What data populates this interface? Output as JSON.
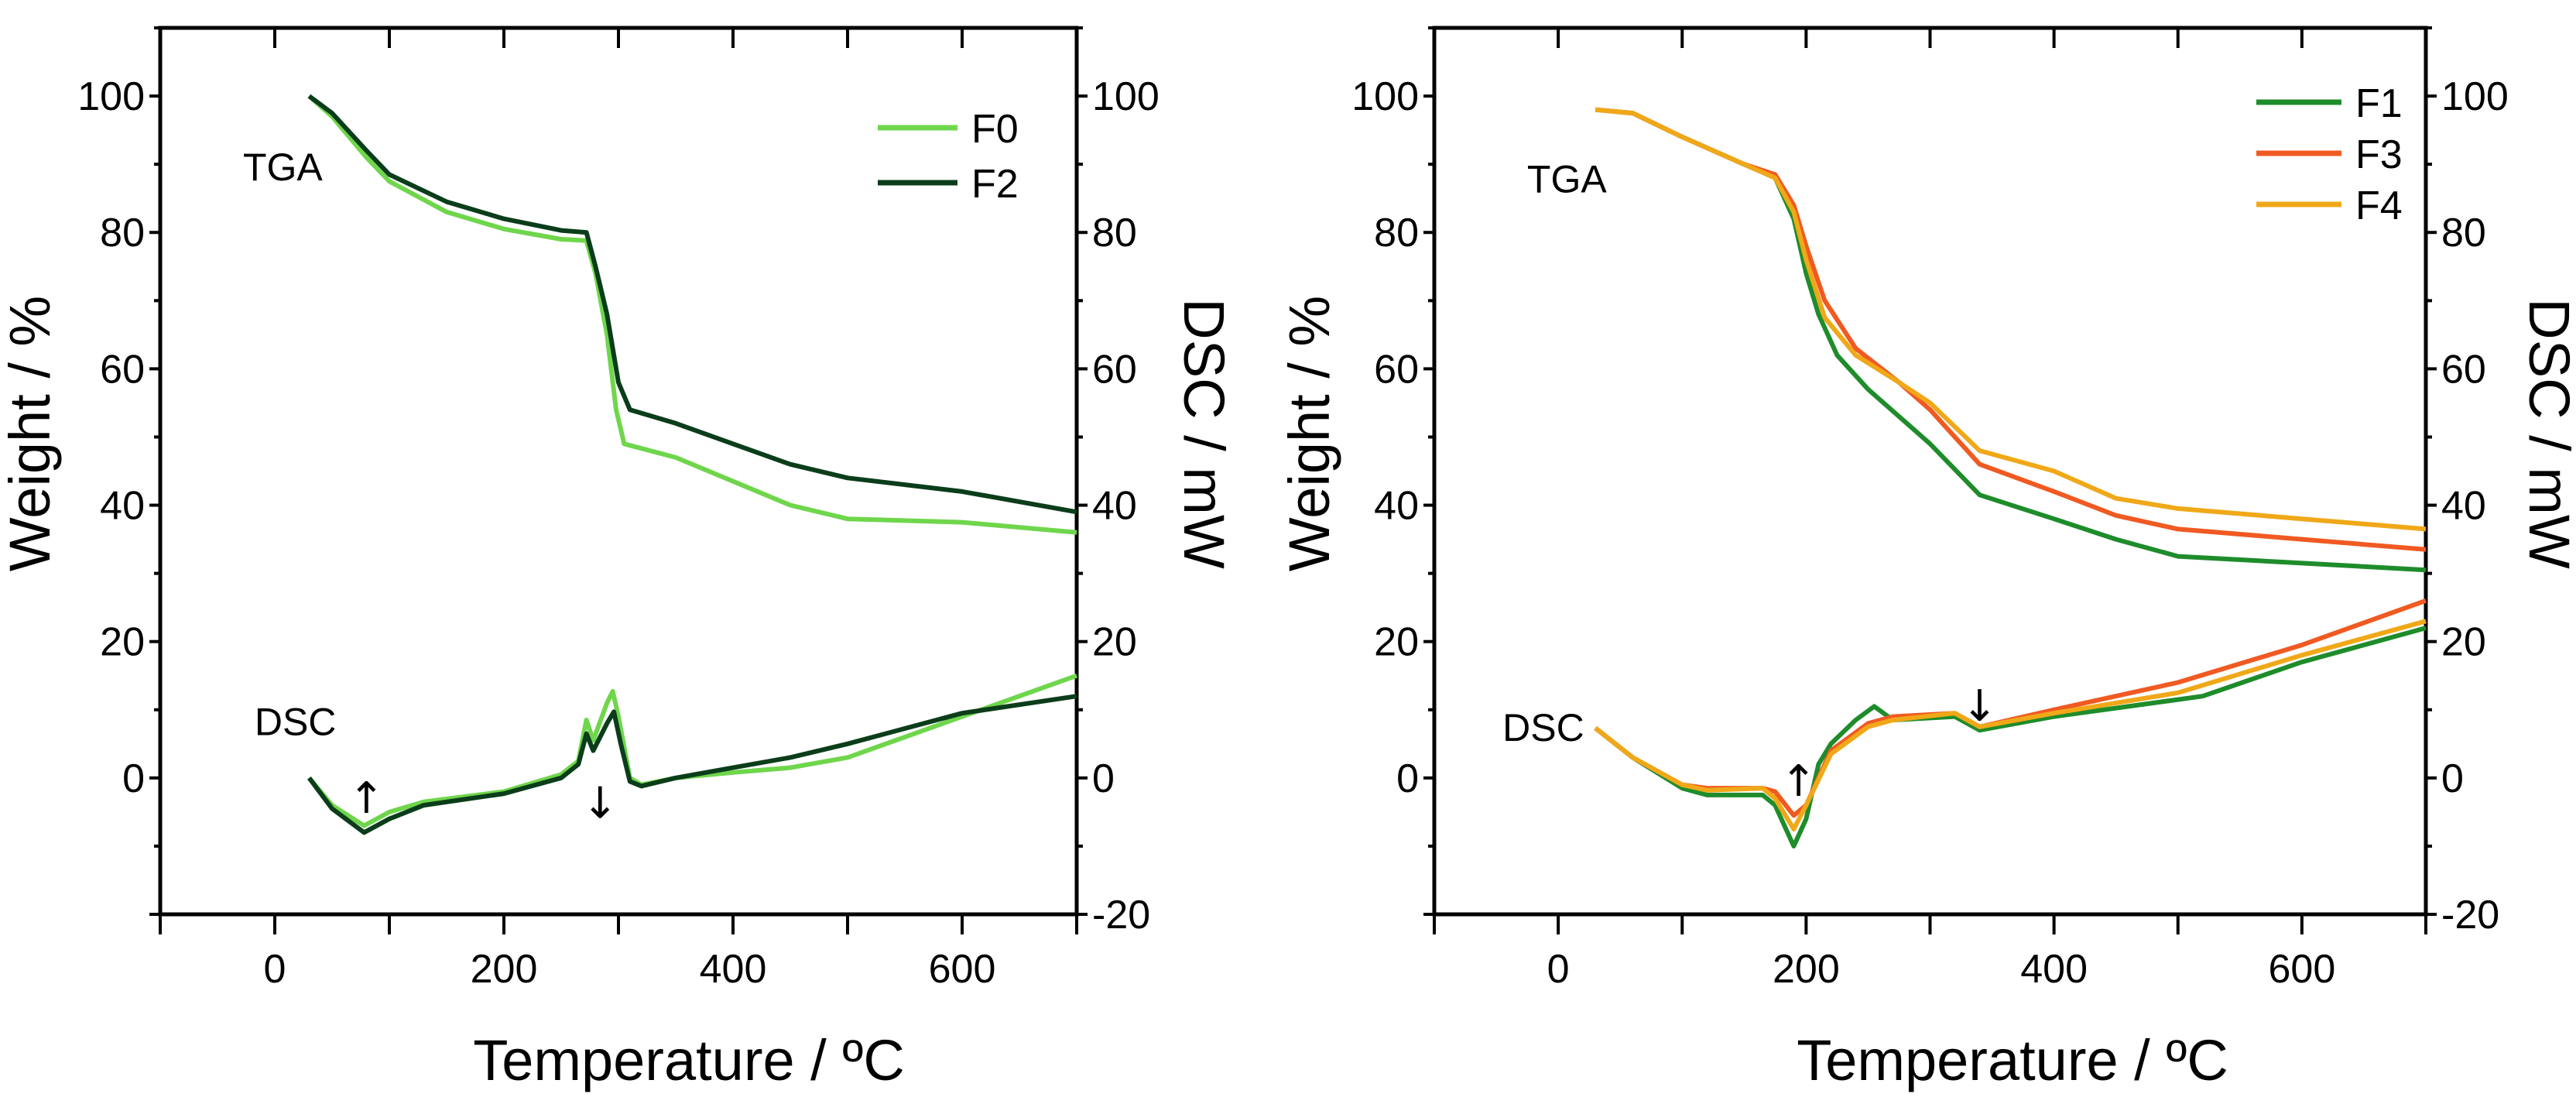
{
  "chart_data": [
    {
      "type": "line",
      "title": "",
      "xlabel": "Temperature / ºC",
      "ylabel": "Weight / %",
      "ylabel_right": "DSC / mW",
      "xlim": [
        -100,
        700
      ],
      "ylim": [
        -20,
        110
      ],
      "ylim_right": [
        -20,
        110
      ],
      "xticks": [
        0,
        200,
        400,
        600
      ],
      "yticks": [
        0,
        20,
        40,
        60,
        80,
        100
      ],
      "yticks_right": [
        -20,
        0,
        20,
        40,
        60,
        80,
        100
      ],
      "grid": false,
      "legend_position": "top-right",
      "legend": [
        "F0",
        "F2"
      ],
      "annotations": [
        {
          "text": "TGA",
          "x": 7,
          "y": 89.7,
          "kind": "label"
        },
        {
          "text": "DSC",
          "x": 18,
          "y": 8.3,
          "kind": "label"
        },
        {
          "text": "↑",
          "x": 80,
          "y": -3.1,
          "kind": "arrow"
        },
        {
          "text": "↓",
          "x": 284,
          "y": -3.8,
          "kind": "arrow"
        }
      ],
      "series": [
        {
          "name": "F0",
          "curve": "TGA",
          "color": "#6fd64c",
          "points": [
            [
              30,
              100
            ],
            [
              50,
              97
            ],
            [
              80,
              91
            ],
            [
              100,
              87.5
            ],
            [
              150,
              83
            ],
            [
              200,
              80.5
            ],
            [
              250,
              79
            ],
            [
              272,
              78.8
            ],
            [
              280,
              74
            ],
            [
              290,
              65
            ],
            [
              298,
              54
            ],
            [
              305,
              49
            ],
            [
              350,
              47
            ],
            [
              400,
              43.5
            ],
            [
              450,
              40
            ],
            [
              500,
              38
            ],
            [
              600,
              37.5
            ],
            [
              700,
              36
            ]
          ]
        },
        {
          "name": "F2",
          "curve": "TGA",
          "color": "#0b3d1a",
          "points": [
            [
              30,
              100
            ],
            [
              50,
              97.5
            ],
            [
              80,
              92
            ],
            [
              100,
              88.5
            ],
            [
              150,
              84.5
            ],
            [
              200,
              82
            ],
            [
              250,
              80.3
            ],
            [
              272,
              80
            ],
            [
              280,
              75
            ],
            [
              290,
              68
            ],
            [
              300,
              58
            ],
            [
              310,
              54
            ],
            [
              350,
              52
            ],
            [
              400,
              49
            ],
            [
              450,
              46
            ],
            [
              500,
              44
            ],
            [
              600,
              42
            ],
            [
              700,
              39
            ]
          ]
        },
        {
          "name": "F0",
          "curve": "DSC",
          "color": "#6fd64c",
          "points": [
            [
              30,
              0
            ],
            [
              50,
              -4
            ],
            [
              78,
              -7
            ],
            [
              100,
              -5
            ],
            [
              130,
              -3.5
            ],
            [
              200,
              -2
            ],
            [
              250,
              0.5
            ],
            [
              265,
              2.5
            ],
            [
              272,
              8.5
            ],
            [
              278,
              5.5
            ],
            [
              290,
              11
            ],
            [
              295,
              12.7
            ],
            [
              300,
              9
            ],
            [
              310,
              0
            ],
            [
              320,
              -1
            ],
            [
              350,
              0
            ],
            [
              400,
              0.8
            ],
            [
              450,
              1.5
            ],
            [
              500,
              3
            ],
            [
              600,
              9
            ],
            [
              700,
              15
            ]
          ]
        },
        {
          "name": "F2",
          "curve": "DSC",
          "color": "#0b3d1a",
          "points": [
            [
              30,
              0
            ],
            [
              50,
              -4.5
            ],
            [
              78,
              -8
            ],
            [
              100,
              -6
            ],
            [
              130,
              -4
            ],
            [
              200,
              -2.3
            ],
            [
              250,
              0
            ],
            [
              265,
              2
            ],
            [
              272,
              6.5
            ],
            [
              278,
              4
            ],
            [
              290,
              8
            ],
            [
              296,
              9.7
            ],
            [
              302,
              5
            ],
            [
              310,
              -0.5
            ],
            [
              320,
              -1.2
            ],
            [
              350,
              0
            ],
            [
              400,
              1.5
            ],
            [
              450,
              3
            ],
            [
              500,
              5
            ],
            [
              600,
              9.5
            ],
            [
              700,
              12
            ]
          ]
        }
      ]
    },
    {
      "type": "line",
      "title": "",
      "xlabel": "Temperature / ºC",
      "ylabel": "Weight / %",
      "ylabel_right": "DSC / mW",
      "xlim": [
        -100,
        700
      ],
      "ylim": [
        -20,
        110
      ],
      "ylim_right": [
        -20,
        110
      ],
      "xticks": [
        0,
        200,
        400,
        600
      ],
      "yticks": [
        0,
        20,
        40,
        60,
        80,
        100
      ],
      "yticks_right": [
        -20,
        0,
        20,
        40,
        60,
        80,
        100
      ],
      "grid": false,
      "legend_position": "top-right",
      "legend": [
        "F1",
        "F3",
        "F4"
      ],
      "annotations": [
        {
          "text": "TGA",
          "x": 7,
          "y": 87.9,
          "kind": "label"
        },
        {
          "text": "DSC",
          "x": -12,
          "y": 7.5,
          "kind": "label"
        },
        {
          "text": "↑",
          "x": 194,
          "y": -0.6,
          "kind": "arrow"
        },
        {
          "text": "↓",
          "x": 340,
          "y": 10.4,
          "kind": "arrow"
        }
      ],
      "series": [
        {
          "name": "F1",
          "curve": "TGA",
          "color": "#1e8c2a",
          "points": [
            [
              30,
              98
            ],
            [
              60,
              97.5
            ],
            [
              100,
              94
            ],
            [
              150,
              90
            ],
            [
              175,
              88
            ],
            [
              190,
              82
            ],
            [
              200,
              74
            ],
            [
              210,
              68
            ],
            [
              225,
              62
            ],
            [
              250,
              57
            ],
            [
              300,
              49
            ],
            [
              340,
              41.5
            ],
            [
              400,
              38
            ],
            [
              450,
              35
            ],
            [
              500,
              32.5
            ],
            [
              600,
              31.5
            ],
            [
              700,
              30.5
            ]
          ]
        },
        {
          "name": "F3",
          "curve": "TGA",
          "color": "#f05a22",
          "points": [
            [
              30,
              98
            ],
            [
              60,
              97.5
            ],
            [
              100,
              94
            ],
            [
              150,
              90
            ],
            [
              175,
              88.5
            ],
            [
              190,
              84
            ],
            [
              200,
              78
            ],
            [
              215,
              70
            ],
            [
              240,
              63
            ],
            [
              275,
              58
            ],
            [
              300,
              54
            ],
            [
              340,
              46
            ],
            [
              400,
              42
            ],
            [
              450,
              38.5
            ],
            [
              500,
              36.5
            ],
            [
              600,
              35
            ],
            [
              700,
              33.5
            ]
          ]
        },
        {
          "name": "F4",
          "curve": "TGA",
          "color": "#f0a818",
          "points": [
            [
              30,
              98
            ],
            [
              60,
              97.5
            ],
            [
              100,
              94
            ],
            [
              150,
              90
            ],
            [
              175,
              88
            ],
            [
              190,
              83
            ],
            [
              200,
              76
            ],
            [
              215,
              67.5
            ],
            [
              240,
              62
            ],
            [
              275,
              58
            ],
            [
              300,
              55
            ],
            [
              340,
              48
            ],
            [
              400,
              45
            ],
            [
              450,
              41
            ],
            [
              500,
              39.5
            ],
            [
              600,
              38
            ],
            [
              700,
              36.5
            ]
          ]
        },
        {
          "name": "F1",
          "curve": "DSC",
          "color": "#1e8c2a",
          "points": [
            [
              30,
              7.3
            ],
            [
              60,
              3
            ],
            [
              100,
              -1.5
            ],
            [
              120,
              -2.5
            ],
            [
              165,
              -2.5
            ],
            [
              175,
              -4
            ],
            [
              190,
              -10
            ],
            [
              200,
              -6
            ],
            [
              210,
              2
            ],
            [
              220,
              5
            ],
            [
              240,
              8.5
            ],
            [
              255,
              10.5
            ],
            [
              270,
              8.5
            ],
            [
              320,
              9
            ],
            [
              340,
              7
            ],
            [
              400,
              9
            ],
            [
              500,
              11.5
            ],
            [
              520,
              12
            ],
            [
              600,
              17
            ],
            [
              700,
              22
            ]
          ]
        },
        {
          "name": "F3",
          "curve": "DSC",
          "color": "#f05a22",
          "points": [
            [
              30,
              7.3
            ],
            [
              60,
              3
            ],
            [
              100,
              -1
            ],
            [
              120,
              -1.5
            ],
            [
              165,
              -1.5
            ],
            [
              175,
              -2
            ],
            [
              190,
              -5.5
            ],
            [
              200,
              -4
            ],
            [
              220,
              4
            ],
            [
              250,
              8
            ],
            [
              270,
              9
            ],
            [
              320,
              9.5
            ],
            [
              340,
              7.5
            ],
            [
              400,
              10
            ],
            [
              500,
              14
            ],
            [
              600,
              19.5
            ],
            [
              700,
              26
            ]
          ]
        },
        {
          "name": "F4",
          "curve": "DSC",
          "color": "#f0a818",
          "points": [
            [
              30,
              7.3
            ],
            [
              60,
              3
            ],
            [
              100,
              -1
            ],
            [
              120,
              -1.8
            ],
            [
              165,
              -1.5
            ],
            [
              175,
              -3
            ],
            [
              190,
              -7.5
            ],
            [
              200,
              -4
            ],
            [
              220,
              3.5
            ],
            [
              250,
              7.5
            ],
            [
              270,
              8.5
            ],
            [
              320,
              9.5
            ],
            [
              340,
              7.5
            ],
            [
              400,
              9.5
            ],
            [
              500,
              12.5
            ],
            [
              600,
              18
            ],
            [
              700,
              23
            ]
          ]
        }
      ]
    }
  ]
}
